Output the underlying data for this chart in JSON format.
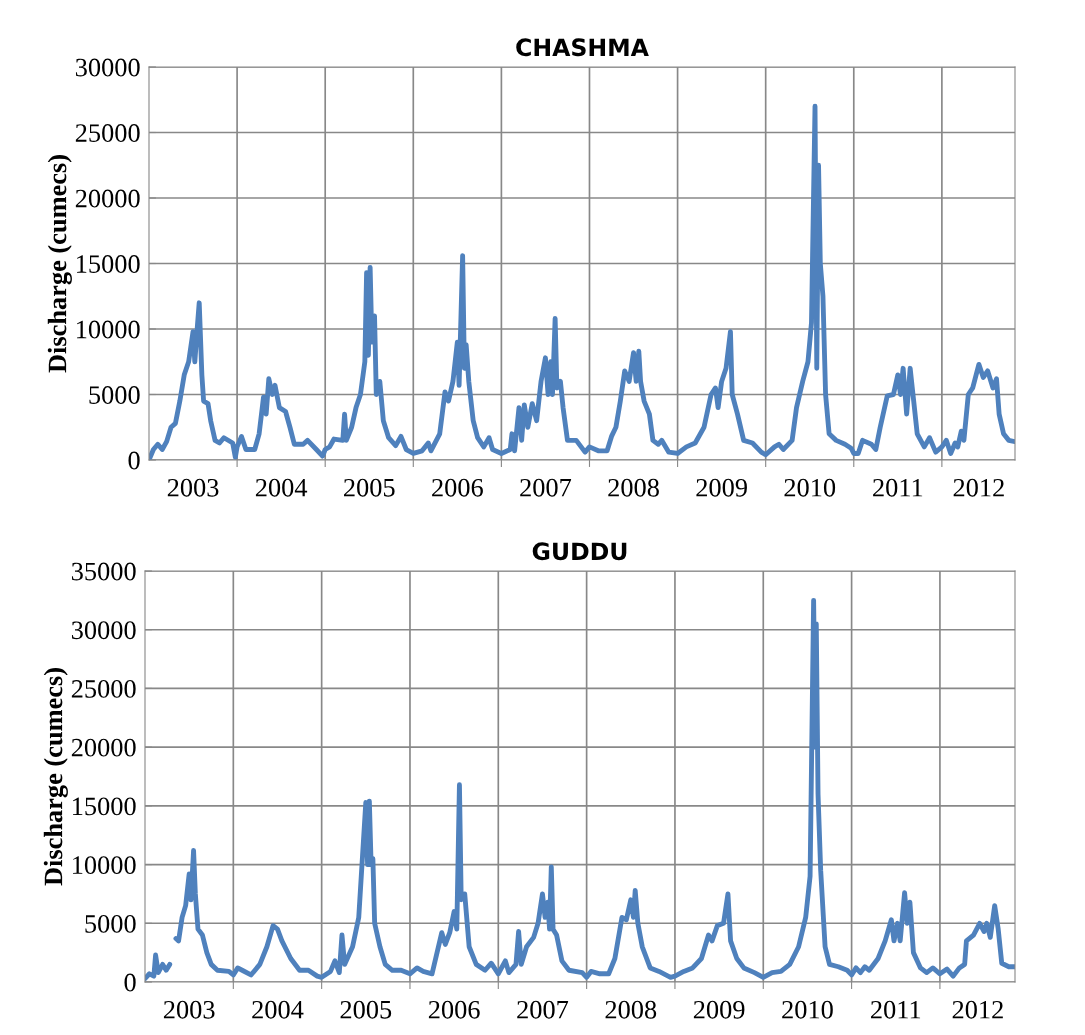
{
  "chart_data": [
    {
      "type": "line",
      "title": "CHASHMA",
      "ylabel": "Discharge (cumecs)",
      "grid": true,
      "line_style": "solid",
      "marker": "none",
      "xlim": [
        2003,
        2012.83
      ],
      "ylim": [
        0,
        30000
      ],
      "yticks": [
        0,
        5000,
        10000,
        15000,
        20000,
        25000,
        30000
      ],
      "xticks": [
        {
          "value": 2003.5,
          "label": "2003"
        },
        {
          "value": 2004,
          "label": null
        },
        {
          "value": 2004.5,
          "label": "2004"
        },
        {
          "value": 2005,
          "label": null
        },
        {
          "value": 2005.5,
          "label": "2005"
        },
        {
          "value": 2006,
          "label": null
        },
        {
          "value": 2006.5,
          "label": "2006"
        },
        {
          "value": 2007,
          "label": null
        },
        {
          "value": 2007.5,
          "label": "2007"
        },
        {
          "value": 2008,
          "label": null
        },
        {
          "value": 2008.5,
          "label": "2008"
        },
        {
          "value": 2009,
          "label": null
        },
        {
          "value": 2009.5,
          "label": "2009"
        },
        {
          "value": 2010,
          "label": null
        },
        {
          "value": 2010.5,
          "label": "2010"
        },
        {
          "value": 2011,
          "label": null
        },
        {
          "value": 2011.5,
          "label": "2011"
        },
        {
          "value": 2012,
          "label": null
        },
        {
          "value": 2012.42,
          "label": "2012"
        }
      ],
      "series": [
        {
          "color": "#4f81bd",
          "x": [
            2003.0,
            2003.05,
            2003.1,
            2003.15,
            2003.2,
            2003.25,
            2003.3,
            2003.35,
            2003.4,
            2003.45,
            2003.5,
            2003.52,
            2003.55,
            2003.57,
            2003.6,
            2003.62,
            2003.67,
            2003.7,
            2003.75,
            2003.8,
            2003.85,
            2003.95,
            2003.98,
            2004.0,
            2004.05,
            2004.1,
            2004.2,
            2004.25,
            2004.3,
            2004.33,
            2004.36,
            2004.4,
            2004.43,
            2004.48,
            2004.55,
            2004.6,
            2004.65,
            2004.75,
            2004.8,
            2004.9,
            2004.97,
            2005.0,
            2005.05,
            2005.1,
            2005.2,
            2005.22,
            2005.24,
            2005.3,
            2005.35,
            2005.4,
            2005.45,
            2005.47,
            2005.49,
            2005.51,
            2005.53,
            2005.56,
            2005.58,
            2005.62,
            2005.66,
            2005.72,
            2005.8,
            2005.86,
            2005.92,
            2006.0,
            2006.1,
            2006.17,
            2006.2,
            2006.3,
            2006.36,
            2006.4,
            2006.45,
            2006.5,
            2006.52,
            2006.56,
            2006.58,
            2006.6,
            2006.63,
            2006.68,
            2006.73,
            2006.8,
            2006.86,
            2006.9,
            2007.0,
            2007.1,
            2007.12,
            2007.15,
            2007.2,
            2007.23,
            2007.26,
            2007.3,
            2007.35,
            2007.4,
            2007.45,
            2007.5,
            2007.53,
            2007.56,
            2007.58,
            2007.61,
            2007.63,
            2007.67,
            2007.7,
            2007.75,
            2007.85,
            2007.95,
            2008.0,
            2008.1,
            2008.2,
            2008.25,
            2008.3,
            2008.35,
            2008.4,
            2008.45,
            2008.5,
            2008.53,
            2008.56,
            2008.58,
            2008.62,
            2008.68,
            2008.72,
            2008.78,
            2008.82,
            2008.9,
            2009.0,
            2009.1,
            2009.2,
            2009.3,
            2009.38,
            2009.43,
            2009.46,
            2009.5,
            2009.55,
            2009.6,
            2009.62,
            2009.68,
            2009.75,
            2009.85,
            2009.95,
            2010.0,
            2010.1,
            2010.15,
            2010.2,
            2010.3,
            2010.35,
            2010.42,
            2010.48,
            2010.52,
            2010.56,
            2010.58,
            2010.6,
            2010.62,
            2010.65,
            2010.68,
            2010.72,
            2010.8,
            2010.9,
            2010.97,
            2011.0,
            2011.05,
            2011.1,
            2011.2,
            2011.25,
            2011.3,
            2011.38,
            2011.45,
            2011.5,
            2011.53,
            2011.56,
            2011.6,
            2011.64,
            2011.68,
            2011.72,
            2011.8,
            2011.86,
            2011.93,
            2012.0,
            2012.05,
            2012.1,
            2012.15,
            2012.18,
            2012.22,
            2012.25,
            2012.3,
            2012.35,
            2012.42,
            2012.47,
            2012.52,
            2012.58,
            2012.62,
            2012.65,
            2012.7,
            2012.76,
            2012.83
          ],
          "values": [
            0,
            800,
            1200,
            800,
            1400,
            2500,
            2800,
            4500,
            6500,
            7500,
            9800,
            7500,
            10300,
            12000,
            6500,
            4500,
            4300,
            3000,
            1500,
            1300,
            1700,
            1300,
            200,
            1000,
            1800,
            800,
            800,
            2000,
            4800,
            3500,
            6200,
            5000,
            5700,
            4000,
            3700,
            2500,
            1200,
            1200,
            1500,
            800,
            300,
            800,
            1000,
            1600,
            1500,
            3500,
            1500,
            2500,
            4000,
            5000,
            7500,
            14300,
            8000,
            14700,
            9000,
            11000,
            5000,
            6000,
            3000,
            1700,
            1100,
            1800,
            800,
            500,
            700,
            1300,
            700,
            2000,
            5200,
            4500,
            6000,
            9000,
            5700,
            15600,
            7000,
            8800,
            6000,
            3000,
            1700,
            1000,
            1700,
            800,
            500,
            800,
            2000,
            700,
            4000,
            1500,
            4200,
            2500,
            4300,
            3000,
            6000,
            7800,
            5000,
            7500,
            5000,
            10800,
            5500,
            6000,
            4000,
            1500,
            1500,
            600,
            1000,
            700,
            700,
            1800,
            2500,
            4500,
            6800,
            6000,
            8200,
            6000,
            8300,
            6000,
            4500,
            3500,
            1500,
            1200,
            1500,
            600,
            500,
            1000,
            1300,
            2500,
            5000,
            5500,
            4000,
            6000,
            7000,
            9800,
            5000,
            3500,
            1500,
            1300,
            600,
            400,
            1000,
            1200,
            800,
            1500,
            4000,
            6000,
            7500,
            10500,
            27000,
            7000,
            22500,
            15000,
            12500,
            5000,
            2000,
            1500,
            1200,
            900,
            500,
            500,
            1500,
            1200,
            800,
            2500,
            4900,
            5000,
            6500,
            5000,
            7000,
            3500,
            7000,
            4500,
            2000,
            1000,
            1700,
            600,
            1000,
            1500,
            500,
            1300,
            1000,
            2200,
            1500,
            5000,
            5500,
            7300,
            6300,
            6800,
            5500,
            6200,
            3500,
            2000,
            1500,
            1400
          ]
        }
      ]
    },
    {
      "type": "line",
      "title": "GUDDU",
      "ylabel": "Discharge (cumecs)",
      "grid": true,
      "line_style": "solid",
      "marker": "none",
      "xlim": [
        2003,
        2012.85
      ],
      "ylim": [
        0,
        35000
      ],
      "yticks": [
        0,
        5000,
        10000,
        15000,
        20000,
        25000,
        30000,
        35000
      ],
      "xticks": [
        {
          "value": 2003.5,
          "label": "2003"
        },
        {
          "value": 2004,
          "label": null
        },
        {
          "value": 2004.5,
          "label": "2004"
        },
        {
          "value": 2005,
          "label": null
        },
        {
          "value": 2005.5,
          "label": "2005"
        },
        {
          "value": 2006,
          "label": null
        },
        {
          "value": 2006.5,
          "label": "2006"
        },
        {
          "value": 2007,
          "label": null
        },
        {
          "value": 2007.5,
          "label": "2007"
        },
        {
          "value": 2008,
          "label": null
        },
        {
          "value": 2008.5,
          "label": "2008"
        },
        {
          "value": 2009,
          "label": null
        },
        {
          "value": 2009.5,
          "label": "2009"
        },
        {
          "value": 2010,
          "label": null
        },
        {
          "value": 2010.5,
          "label": "2010"
        },
        {
          "value": 2011,
          "label": null
        },
        {
          "value": 2011.5,
          "label": "2011"
        },
        {
          "value": 2012,
          "label": null
        },
        {
          "value": 2012.43,
          "label": "2012"
        }
      ],
      "series": [
        {
          "color": "#4f81bd",
          "x": [
            2003.0,
            2003.05,
            2003.1,
            2003.12,
            2003.15,
            2003.2,
            2003.24,
            2003.28,
            2003.31,
            2003.35,
            2003.38,
            2003.42,
            2003.46,
            2003.5,
            2003.52,
            2003.55,
            2003.57,
            2003.6,
            2003.65,
            2003.7,
            2003.75,
            2003.82,
            2003.95,
            2004.0,
            2004.05,
            2004.1,
            2004.2,
            2004.3,
            2004.38,
            2004.45,
            2004.5,
            2004.55,
            2004.65,
            2004.75,
            2004.85,
            2004.95,
            2005.0,
            2005.1,
            2005.15,
            2005.2,
            2005.23,
            2005.26,
            2005.35,
            2005.42,
            2005.5,
            2005.52,
            2005.54,
            2005.56,
            2005.58,
            2005.6,
            2005.66,
            2005.72,
            2005.8,
            2005.9,
            2006.0,
            2006.08,
            2006.15,
            2006.25,
            2006.36,
            2006.4,
            2006.45,
            2006.5,
            2006.53,
            2006.56,
            2006.58,
            2006.62,
            2006.67,
            2006.75,
            2006.85,
            2006.92,
            2007.0,
            2007.08,
            2007.12,
            2007.2,
            2007.23,
            2007.26,
            2007.32,
            2007.4,
            2007.45,
            2007.5,
            2007.53,
            2007.56,
            2007.58,
            2007.6,
            2007.62,
            2007.66,
            2007.72,
            2007.8,
            2007.95,
            2008.0,
            2008.05,
            2008.15,
            2008.25,
            2008.32,
            2008.4,
            2008.45,
            2008.5,
            2008.53,
            2008.55,
            2008.58,
            2008.63,
            2008.72,
            2008.82,
            2008.95,
            2009.0,
            2009.1,
            2009.2,
            2009.3,
            2009.38,
            2009.42,
            2009.48,
            2009.55,
            2009.6,
            2009.63,
            2009.7,
            2009.78,
            2009.9,
            2010.0,
            2010.1,
            2010.2,
            2010.3,
            2010.4,
            2010.48,
            2010.53,
            2010.57,
            2010.59,
            2010.6,
            2010.62,
            2010.65,
            2010.7,
            2010.75,
            2010.85,
            2010.95,
            2011.0,
            2011.05,
            2011.1,
            2011.15,
            2011.2,
            2011.3,
            2011.38,
            2011.45,
            2011.48,
            2011.52,
            2011.55,
            2011.6,
            2011.63,
            2011.66,
            2011.7,
            2011.78,
            2011.85,
            2011.92,
            2012.0,
            2012.08,
            2012.15,
            2012.22,
            2012.28,
            2012.3,
            2012.38,
            2012.45,
            2012.5,
            2012.53,
            2012.57,
            2012.62,
            2012.66,
            2012.7,
            2012.78,
            2012.85
          ],
          "values": [
            300,
            700,
            500,
            2300,
            800,
            1500,
            1000,
            1500,
            null,
            3700,
            3500,
            5500,
            6500,
            9200,
            7000,
            11200,
            7500,
            4500,
            4000,
            2500,
            1500,
            1000,
            900,
            600,
            1200,
            1000,
            600,
            1500,
            3000,
            4800,
            4500,
            3500,
            2000,
            1000,
            1000,
            500,
            400,
            900,
            1800,
            800,
            4000,
            1500,
            3000,
            5500,
            15300,
            10000,
            15400,
            10000,
            10500,
            5000,
            3000,
            1500,
            1000,
            1000,
            700,
            1200,
            900,
            700,
            4200,
            3200,
            4200,
            6000,
            4500,
            16800,
            7000,
            7500,
            3000,
            1500,
            1000,
            1600,
            700,
            1800,
            800,
            1500,
            4300,
            1500,
            3000,
            3800,
            5000,
            7500,
            5500,
            6800,
            4500,
            9800,
            4500,
            4000,
            1800,
            1000,
            800,
            400,
            900,
            700,
            700,
            2000,
            5500,
            5300,
            7000,
            5500,
            7800,
            5000,
            3000,
            1200,
            900,
            400,
            500,
            900,
            1200,
            2000,
            4000,
            3500,
            4800,
            5000,
            7500,
            3500,
            2000,
            1200,
            800,
            400,
            800,
            900,
            1500,
            3000,
            5500,
            9000,
            32500,
            20000,
            30500,
            16000,
            9500,
            3000,
            1500,
            1300,
            1000,
            600,
            1200,
            800,
            1300,
            1000,
            2000,
            3500,
            5300,
            3500,
            5000,
            3500,
            7600,
            5000,
            6800,
            2500,
            1200,
            800,
            1200,
            700,
            1100,
            500,
            1200,
            1500,
            3500,
            4000,
            5000,
            4300,
            5000,
            3800,
            6500,
            4500,
            1600,
            1300,
            1300
          ]
        }
      ]
    }
  ]
}
